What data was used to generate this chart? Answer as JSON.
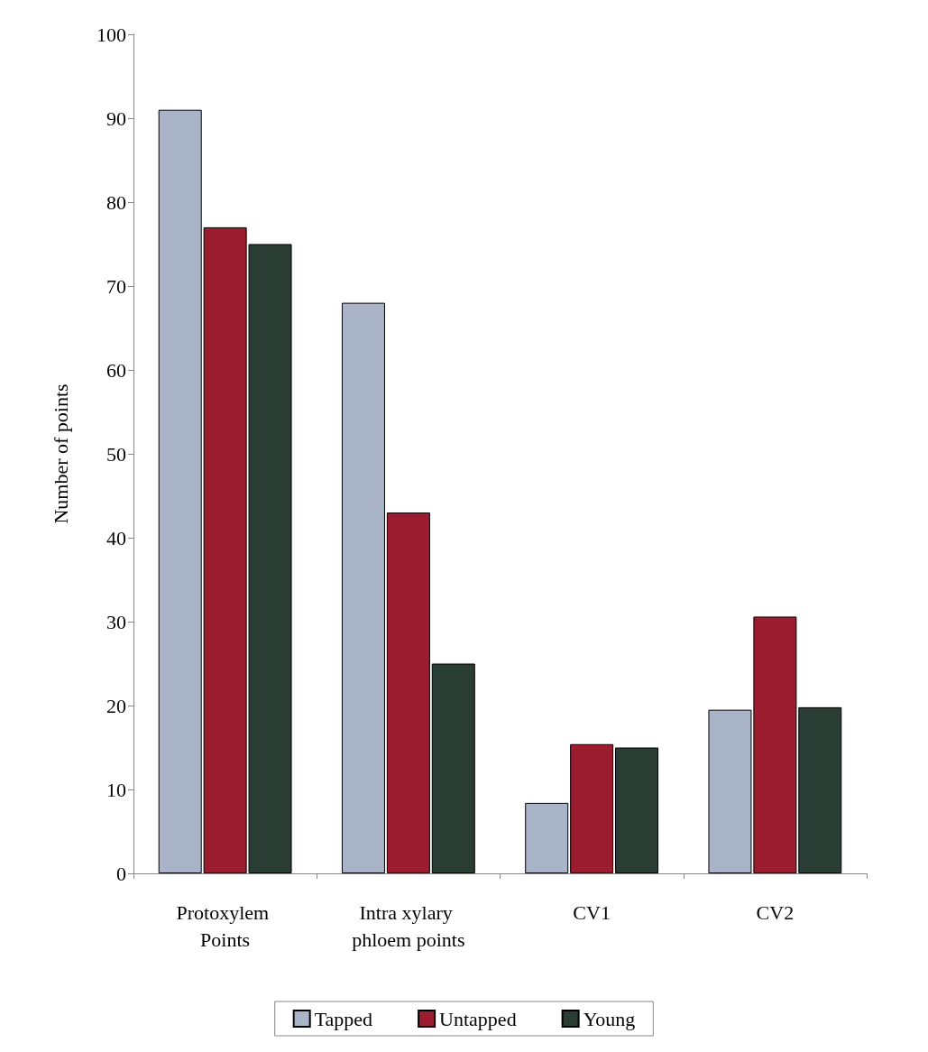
{
  "chart_data": {
    "type": "bar",
    "ylabel": "Number of points",
    "categories": [
      "Protoxylem Points",
      "Intra xylary phloem points",
      "CV1",
      "CV2"
    ],
    "series": [
      {
        "name": "Tapped",
        "color": "#a9b4c8",
        "values": [
          91,
          68,
          8.4,
          19.5
        ]
      },
      {
        "name": "Untapped",
        "color": "#9b1c2e",
        "values": [
          77,
          43,
          15.4,
          30.6
        ]
      },
      {
        "name": "Young",
        "color": "#2a3d35",
        "values": [
          75,
          25,
          15,
          19.8
        ]
      }
    ],
    "ylim": [
      0,
      100
    ],
    "yticks": [
      0,
      10,
      20,
      30,
      40,
      50,
      60,
      70,
      80,
      90,
      100
    ],
    "grid": false,
    "legend": "bottom"
  }
}
